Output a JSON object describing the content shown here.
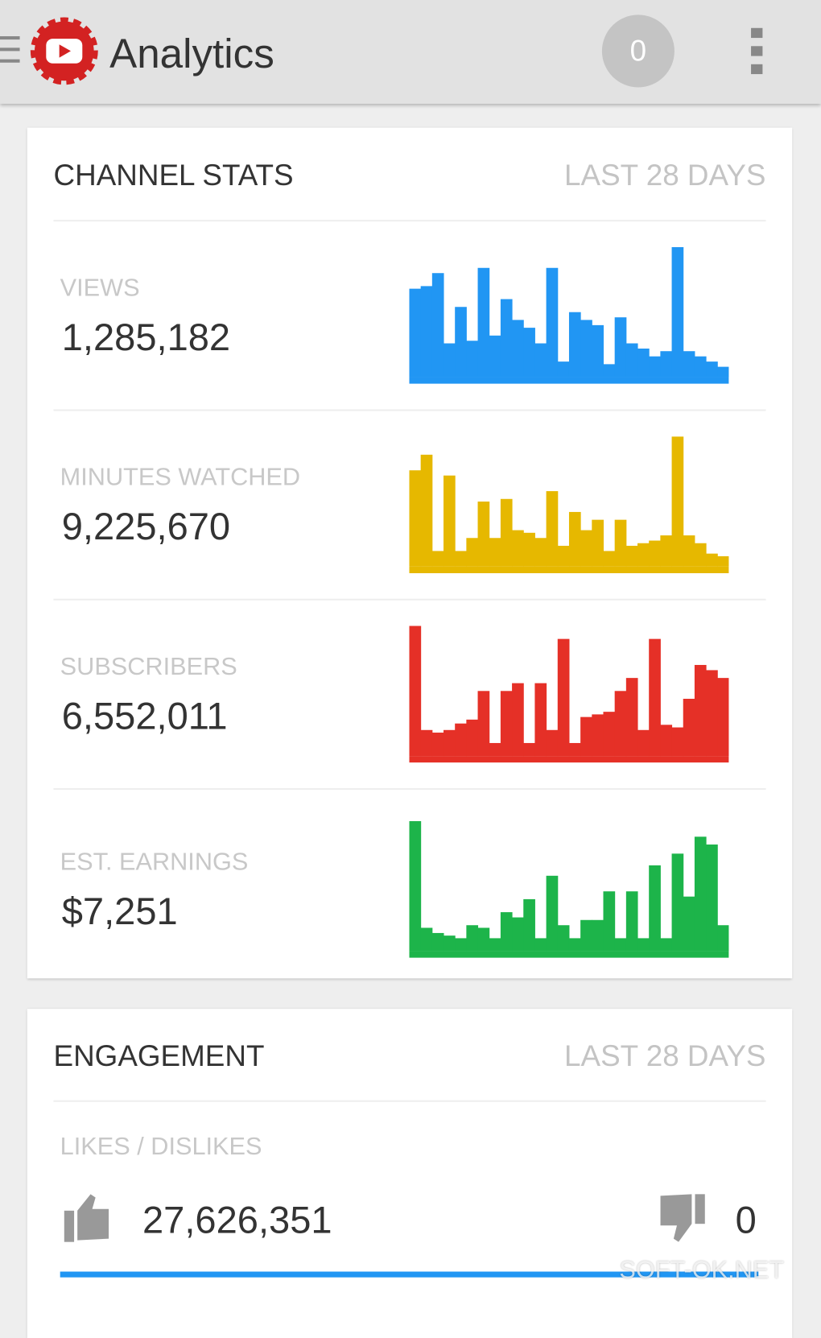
{
  "app_bar": {
    "title": "Analytics",
    "badge": "0"
  },
  "channel_stats": {
    "title": "CHANNEL STATS",
    "period": "LAST 28 DAYS",
    "metrics": [
      {
        "label": "VIEWS",
        "value": "1,285,182",
        "color": "#2196f3",
        "sparkline": [
          68,
          70,
          80,
          26,
          54,
          28,
          84,
          32,
          60,
          44,
          38,
          26,
          84,
          12,
          50,
          44,
          40,
          10,
          46,
          26,
          22,
          16,
          20,
          100,
          20,
          16,
          12,
          8
        ]
      },
      {
        "label": "MINUTES WATCHED",
        "value": "9,225,670",
        "color": "#e6b800",
        "sparkline": [
          74,
          86,
          12,
          70,
          12,
          22,
          50,
          22,
          52,
          28,
          26,
          22,
          58,
          16,
          42,
          28,
          36,
          12,
          36,
          16,
          18,
          20,
          24,
          100,
          24,
          18,
          10,
          8
        ]
      },
      {
        "label": "SUBSCRIBERS",
        "value": "6,552,011",
        "color": "#e53027",
        "sparkline": [
          100,
          20,
          18,
          20,
          25,
          28,
          50,
          10,
          50,
          56,
          10,
          56,
          20,
          90,
          10,
          30,
          32,
          34,
          50,
          60,
          20,
          90,
          24,
          22,
          44,
          70,
          66,
          60
        ]
      },
      {
        "label": "EST. EARNINGS",
        "value": "$7,251",
        "color": "#1db44a",
        "sparkline": [
          100,
          18,
          14,
          12,
          10,
          20,
          18,
          10,
          30,
          26,
          40,
          10,
          58,
          20,
          10,
          24,
          24,
          46,
          10,
          46,
          10,
          66,
          10,
          75,
          42,
          88,
          82,
          20
        ]
      }
    ]
  },
  "engagement": {
    "title": "ENGAGEMENT",
    "period": "LAST 28 DAYS",
    "label": "LIKES / DISLIKES",
    "likes": "27,626,351",
    "dislikes": "0"
  },
  "watermark": "SOFT-OK.NET"
}
